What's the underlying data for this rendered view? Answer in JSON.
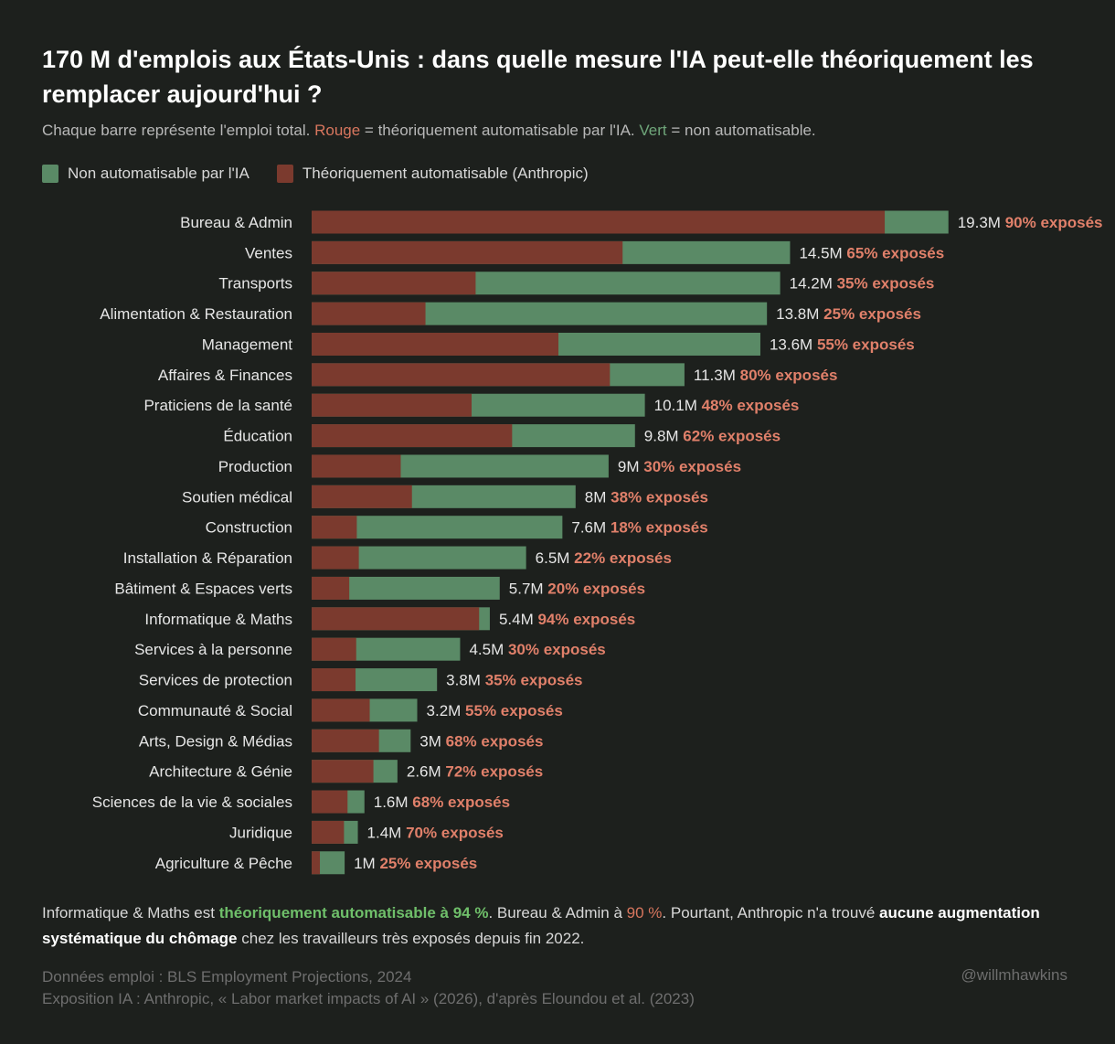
{
  "title": "170 M d'emplois aux États-Unis : dans quelle mesure l'IA peut-elle théoriquement les remplacer aujourd'hui ?",
  "subtitle": {
    "part1": "Chaque barre représente l'emploi total. ",
    "rouge": "Rouge",
    "part2": " = théoriquement automatisable par l'IA. ",
    "vert": "Vert",
    "part3": " = non automatisable."
  },
  "colors": {
    "automatable": "#7b3a2e",
    "not_automatable": "#5a8a66",
    "background": "#1d201d",
    "exposed_label": "#e0806a"
  },
  "chart_data": {
    "type": "bar",
    "orientation": "horizontal",
    "stacked": true,
    "legend": [
      "Non automatisable par l'IA",
      "Théoriquement automatisable (Anthropic)"
    ],
    "legend_placement": "top-left",
    "categories": [
      "Bureau & Admin",
      "Ventes",
      "Transports",
      "Alimentation & Restauration",
      "Management",
      "Affaires & Finances",
      "Praticiens de la santé",
      "Éducation",
      "Production",
      "Soutien médical",
      "Construction",
      "Installation & Réparation",
      "Bâtiment & Espaces verts",
      "Informatique & Maths",
      "Services à la personne",
      "Services de protection",
      "Communauté & Social",
      "Arts, Design & Médias",
      "Architecture & Génie",
      "Sciences de la vie & sociales",
      "Juridique",
      "Agriculture & Pêche"
    ],
    "total_millions": [
      19.3,
      14.5,
      14.2,
      13.8,
      13.6,
      11.3,
      10.1,
      9.8,
      9,
      8,
      7.6,
      6.5,
      5.7,
      5.4,
      4.5,
      3.8,
      3.2,
      3,
      2.6,
      1.6,
      1.4,
      1
    ],
    "total_labels": [
      "19.3M",
      "14.5M",
      "14.2M",
      "13.8M",
      "13.6M",
      "11.3M",
      "10.1M",
      "9.8M",
      "9M",
      "8M",
      "7.6M",
      "6.5M",
      "5.7M",
      "5.4M",
      "4.5M",
      "3.8M",
      "3.2M",
      "3M",
      "2.6M",
      "1.6M",
      "1.4M",
      "1M"
    ],
    "exposed_pct": [
      90,
      65,
      35,
      25,
      55,
      80,
      48,
      62,
      30,
      38,
      18,
      22,
      20,
      94,
      30,
      35,
      55,
      68,
      72,
      68,
      70,
      25
    ],
    "exposed_suffix": "% exposés",
    "grid": false
  },
  "note": {
    "p1": "Informatique & Maths est ",
    "highlight1": "théoriquement automatisable à 94 %",
    "p2": ". Bureau & Admin à ",
    "highlight2": "90 %",
    "p3": ". Pourtant, Anthropic n'a trouvé ",
    "bold": "aucune augmentation systématique du chômage",
    "p4": " chez les travailleurs très exposés depuis fin 2022."
  },
  "sources": {
    "line1": "Données emploi : BLS Employment Projections, 2024",
    "line2": "Exposition IA : Anthropic, « Labor market impacts of AI » (2026), d'après Eloundou et al. (2023)"
  },
  "handle": "@willmhawkins"
}
